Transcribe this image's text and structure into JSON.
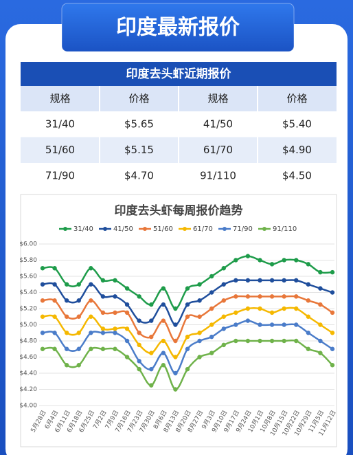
{
  "banner": {
    "title": "印度最新报价"
  },
  "table": {
    "title": "印度去头虾近期报价",
    "columns": [
      "规格",
      "价格",
      "规格",
      "价格"
    ],
    "rows": [
      [
        "31/40",
        "$5.65",
        "41/50",
        "$5.40"
      ],
      [
        "51/60",
        "$5.15",
        "61/70",
        "$4.90"
      ],
      [
        "71/90",
        "$4.70",
        "91/110",
        "$4.50"
      ]
    ]
  },
  "chart_data": {
    "type": "line",
    "title": "印度去头虾每周报价趋势",
    "categories": [
      "5月28日",
      "6月4日",
      "6月11日",
      "6月18日",
      "6月25日",
      "7月2日",
      "7月9日",
      "7月16日",
      "7月23日",
      "7月30日",
      "8月6日",
      "8月13日",
      "8月20日",
      "8月27日",
      "9月3日",
      "9月10日",
      "9月17日",
      "9月24日",
      "10月1日",
      "10月8日",
      "10月15日",
      "10月22日",
      "10月29日",
      "11月5日",
      "11月12日"
    ],
    "series": [
      {
        "name": "31/40",
        "color": "#1e9c4a",
        "values": [
          5.7,
          5.7,
          5.5,
          5.5,
          5.7,
          5.55,
          5.55,
          5.45,
          5.35,
          5.25,
          5.45,
          5.2,
          5.45,
          5.5,
          5.6,
          5.7,
          5.8,
          5.85,
          5.8,
          5.75,
          5.8,
          5.8,
          5.75,
          5.65,
          5.65
        ]
      },
      {
        "name": "41/50",
        "color": "#1f4e9c",
        "values": [
          5.5,
          5.5,
          5.3,
          5.3,
          5.5,
          5.35,
          5.35,
          5.25,
          5.05,
          5.05,
          5.25,
          5.0,
          5.25,
          5.3,
          5.4,
          5.5,
          5.55,
          5.55,
          5.55,
          5.55,
          5.55,
          5.55,
          5.5,
          5.45,
          5.4
        ]
      },
      {
        "name": "51/60",
        "color": "#e8773a",
        "values": [
          5.3,
          5.3,
          5.1,
          5.1,
          5.3,
          5.15,
          5.15,
          5.15,
          4.9,
          4.85,
          5.05,
          4.8,
          5.1,
          5.1,
          5.2,
          5.3,
          5.35,
          5.35,
          5.35,
          5.35,
          5.35,
          5.35,
          5.3,
          5.25,
          5.15
        ]
      },
      {
        "name": "61/70",
        "color": "#f5b800",
        "values": [
          5.1,
          5.1,
          4.9,
          4.9,
          5.1,
          4.95,
          4.95,
          4.95,
          4.75,
          4.65,
          4.8,
          4.6,
          4.85,
          4.9,
          5.0,
          5.1,
          5.15,
          5.2,
          5.2,
          5.15,
          5.2,
          5.2,
          5.1,
          5.0,
          4.9
        ]
      },
      {
        "name": "71/90",
        "color": "#4a7cc9",
        "values": [
          4.9,
          4.9,
          4.7,
          4.7,
          4.9,
          4.9,
          4.9,
          4.8,
          4.55,
          4.45,
          4.65,
          4.4,
          4.7,
          4.8,
          4.85,
          4.95,
          5.0,
          5.05,
          5.0,
          5.0,
          5.0,
          5.0,
          4.9,
          4.8,
          4.7
        ]
      },
      {
        "name": "91/110",
        "color": "#6fb24a",
        "values": [
          4.7,
          4.7,
          4.5,
          4.5,
          4.7,
          4.7,
          4.7,
          4.6,
          4.45,
          4.25,
          4.5,
          4.2,
          4.45,
          4.6,
          4.65,
          4.75,
          4.8,
          4.8,
          4.8,
          4.8,
          4.8,
          4.8,
          4.7,
          4.65,
          4.5
        ]
      }
    ],
    "ylim": [
      4,
      6
    ],
    "yticks": [
      {
        "value": 4,
        "label": "$4.00"
      },
      {
        "value": 4.2,
        "label": "$4.20"
      },
      {
        "value": 4.4,
        "label": "$4.40"
      },
      {
        "value": 4.6,
        "label": "$4.60"
      },
      {
        "value": 4.8,
        "label": "$4.80"
      },
      {
        "value": 5,
        "label": "$5.00"
      },
      {
        "value": 5.2,
        "label": "$5.20"
      },
      {
        "value": 5.4,
        "label": "$5.40"
      },
      {
        "value": 5.6,
        "label": "$5.60"
      },
      {
        "value": 5.8,
        "label": "$5.80"
      },
      {
        "value": 6,
        "label": "$6.00"
      }
    ],
    "grid": true,
    "legend": "top"
  }
}
